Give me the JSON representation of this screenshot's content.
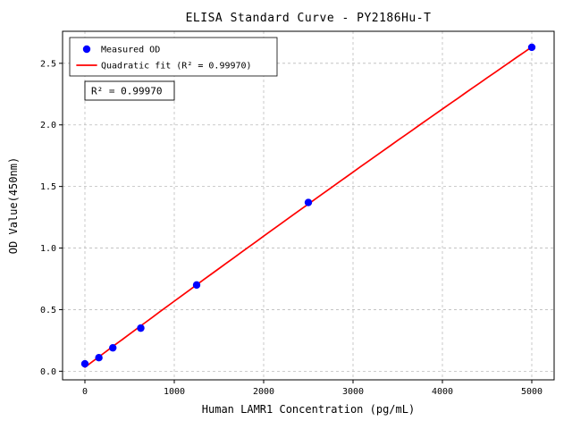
{
  "window": {
    "background": "#ffffff"
  },
  "chart_data": {
    "type": "scatter",
    "title": "ELISA Standard Curve - PY2186Hu-T",
    "xlabel": "Human LAMR1 Concentration (pg/mL)",
    "ylabel": "OD Value(450nm)",
    "x": [
      0,
      156.25,
      312.5,
      625,
      1250,
      2500,
      5000
    ],
    "y": [
      0.06,
      0.11,
      0.19,
      0.35,
      0.7,
      1.37,
      2.63
    ],
    "xticks": [
      0,
      1000,
      2000,
      3000,
      4000,
      5000
    ],
    "yticks": [
      0,
      0.5,
      1.0,
      1.5,
      2.0,
      2.5
    ],
    "xlim": [
      -250,
      5250
    ],
    "ylim": [
      -0.07,
      2.76
    ],
    "grid": true,
    "fit": {
      "type": "quadratic",
      "r_squared": 0.9997
    },
    "legend": {
      "position": "upper left",
      "measured": "Measured OD",
      "fit": "Quadratic fit (R² = 0.99970)"
    },
    "annotation": "R² = 0.99970",
    "colors": {
      "point": "#0000ff",
      "fit_line": "#ff0000",
      "grid": "#bbbbbb",
      "text": "#000000"
    }
  }
}
